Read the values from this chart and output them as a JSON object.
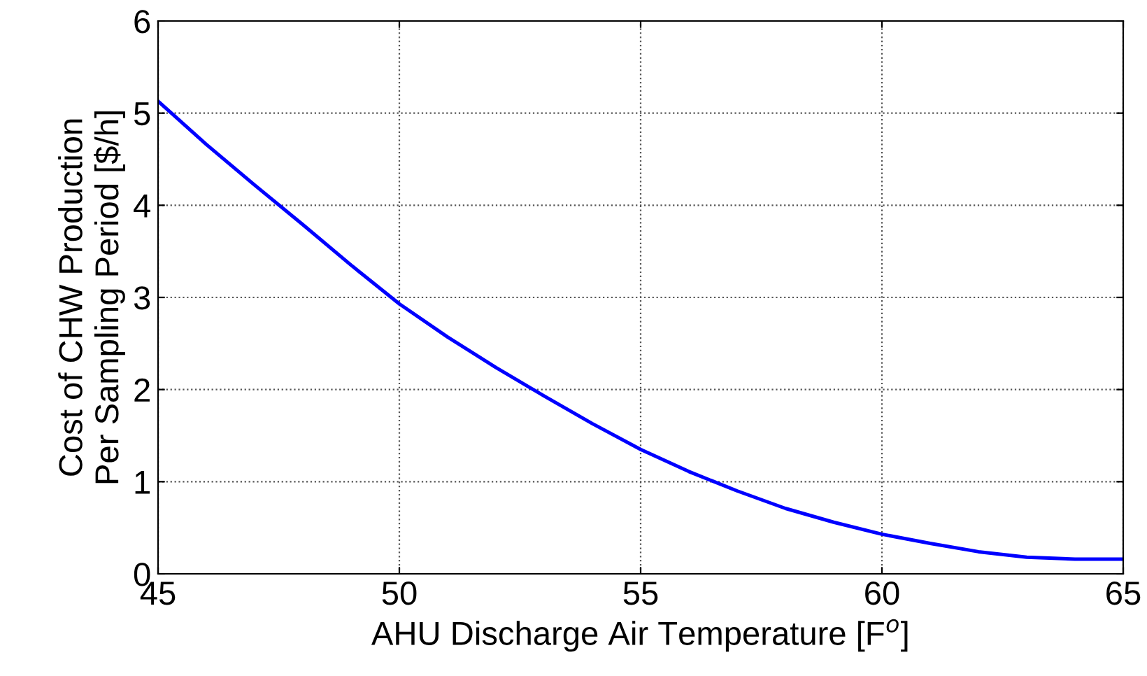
{
  "chart_data": {
    "type": "line",
    "xlabel": "AHU Discharge Air Temperature [F$^{o}$]",
    "ylabel": "Cost of CHW Production\nPer Sampling Period [$/h]",
    "x": [
      45,
      46,
      47,
      48,
      49,
      50,
      51,
      52,
      53,
      54,
      55,
      56,
      57,
      58,
      59,
      60,
      61,
      62,
      63,
      64,
      65
    ],
    "series": [
      {
        "color": "#0000ff",
        "values": [
          5.13,
          4.66,
          4.22,
          3.79,
          3.35,
          2.93,
          2.57,
          2.24,
          1.93,
          1.63,
          1.35,
          1.11,
          0.9,
          0.71,
          0.56,
          0.43,
          0.33,
          0.24,
          0.18,
          0.16,
          0.16
        ]
      }
    ],
    "xlim": [
      45,
      65
    ],
    "xticks": [
      45,
      50,
      55,
      60,
      65
    ],
    "ylim": [
      0,
      6
    ],
    "yticks": [
      0,
      1,
      2,
      3,
      4,
      5,
      6
    ],
    "grid": true,
    "legend": false,
    "line_style": "solid",
    "marker": "none"
  }
}
